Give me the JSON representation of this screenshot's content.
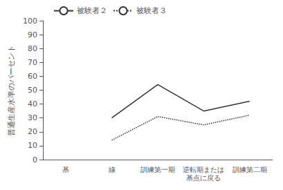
{
  "chart_data": {
    "type": "line",
    "categories": [
      "基",
      "線",
      "訓練第一期",
      "逆転期または\n基点に戻る",
      "訓練第二期"
    ],
    "series": [
      {
        "name": "被験者２",
        "color": "#333333",
        "line_style": "solid",
        "values": [
          null,
          30,
          54,
          35,
          42
        ]
      },
      {
        "name": "被験者３",
        "color": "#333333",
        "line_style": "dotted",
        "values": [
          null,
          14,
          31,
          25,
          32
        ]
      }
    ],
    "ylabel": "普通生産水準のパーセント",
    "ylim": [
      0,
      100
    ],
    "yticks": [
      0,
      10,
      20,
      30,
      40,
      50,
      60,
      70,
      80,
      90,
      100
    ],
    "grid": false,
    "legend": "upper left"
  }
}
